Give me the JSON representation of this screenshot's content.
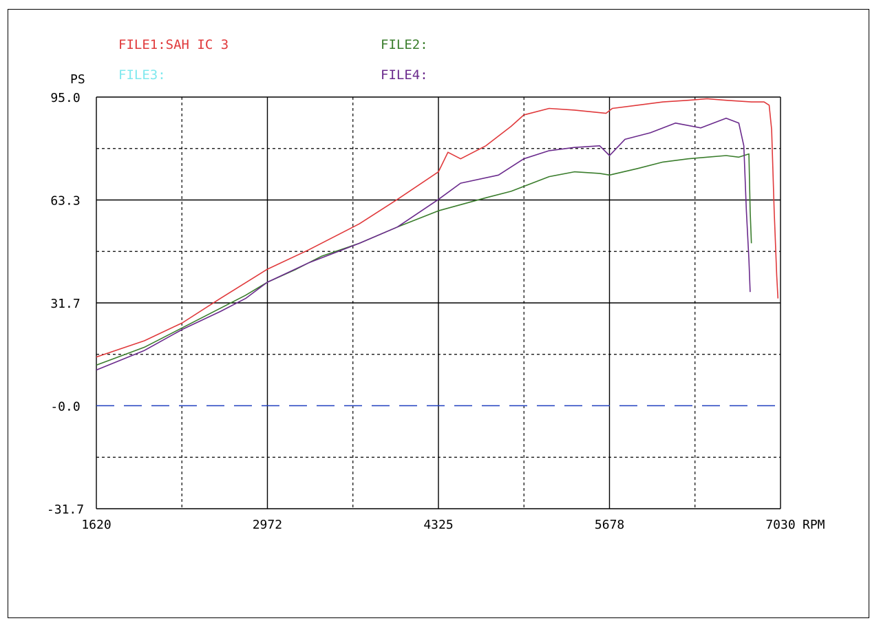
{
  "legend": {
    "file1": {
      "label": "FILE1:SAH IC 3",
      "color": "#e0393b"
    },
    "file2": {
      "label": "FILE2:",
      "color": "#3a7d2c"
    },
    "file3": {
      "label": "FILE3:",
      "color": "#7fe8ee"
    },
    "file4": {
      "label": "FILE4:",
      "color": "#6a2a8c"
    }
  },
  "colors": {
    "grid": "#000000",
    "zero_line": "#1f3fbf",
    "background": "#ffffff"
  },
  "chart_data": {
    "type": "line",
    "ylabel": "PS",
    "xlabel": "RPM",
    "xlim": [
      1620,
      7030
    ],
    "ylim": [
      -31.7,
      95.0
    ],
    "x_ticks": [
      "1620",
      "2972",
      "4325",
      "5678",
      "7030"
    ],
    "y_ticks": [
      "95.0",
      "63.3",
      "31.7",
      "-0.0",
      "-31.7"
    ],
    "grid": true,
    "zero_line": {
      "y": 0,
      "style": "dashed",
      "color": "#1f3fbf"
    },
    "series": [
      {
        "name": "FILE1:SAH IC 3",
        "color": "#e0393b",
        "points": [
          [
            1620,
            15.0
          ],
          [
            2000,
            20.0
          ],
          [
            2300,
            25.5
          ],
          [
            2600,
            33.0
          ],
          [
            2972,
            42.0
          ],
          [
            3300,
            48.0
          ],
          [
            3700,
            56.0
          ],
          [
            4000,
            63.5
          ],
          [
            4325,
            72.0
          ],
          [
            4400,
            78.0
          ],
          [
            4500,
            76.0
          ],
          [
            4700,
            80.0
          ],
          [
            4900,
            86.0
          ],
          [
            5000,
            89.5
          ],
          [
            5200,
            91.5
          ],
          [
            5400,
            91.0
          ],
          [
            5650,
            90.0
          ],
          [
            5700,
            91.5
          ],
          [
            5900,
            92.5
          ],
          [
            6100,
            93.5
          ],
          [
            6300,
            94.0
          ],
          [
            6450,
            94.5
          ],
          [
            6600,
            94.0
          ],
          [
            6800,
            93.5
          ],
          [
            6900,
            93.5
          ],
          [
            6940,
            92.5
          ],
          [
            6960,
            85.0
          ],
          [
            6980,
            60.0
          ],
          [
            7000,
            40.0
          ],
          [
            7010,
            33.0
          ]
        ]
      },
      {
        "name": "FILE2:",
        "color": "#3a7d2c",
        "points": [
          [
            1620,
            12.5
          ],
          [
            2000,
            18.0
          ],
          [
            2400,
            26.0
          ],
          [
            2600,
            30.0
          ],
          [
            2800,
            34.0
          ],
          [
            2972,
            38.0
          ],
          [
            3200,
            42.0
          ],
          [
            3400,
            46.0
          ],
          [
            3700,
            50.0
          ],
          [
            4000,
            55.0
          ],
          [
            4325,
            60.0
          ],
          [
            4700,
            64.0
          ],
          [
            4900,
            66.0
          ],
          [
            5200,
            70.5
          ],
          [
            5400,
            72.0
          ],
          [
            5600,
            71.5
          ],
          [
            5678,
            71.0
          ],
          [
            5900,
            73.0
          ],
          [
            6100,
            75.0
          ],
          [
            6300,
            76.0
          ],
          [
            6450,
            76.5
          ],
          [
            6600,
            77.0
          ],
          [
            6700,
            76.5
          ],
          [
            6780,
            77.5
          ],
          [
            6790,
            60.0
          ],
          [
            6800,
            50.0
          ]
        ]
      },
      {
        "name": "FILE4:",
        "color": "#6a2a8c",
        "points": [
          [
            1620,
            11.0
          ],
          [
            2000,
            17.0
          ],
          [
            2300,
            23.5
          ],
          [
            2600,
            29.0
          ],
          [
            2800,
            33.0
          ],
          [
            2972,
            38.0
          ],
          [
            3300,
            44.0
          ],
          [
            3700,
            50.0
          ],
          [
            4000,
            55.0
          ],
          [
            4325,
            63.5
          ],
          [
            4500,
            68.5
          ],
          [
            4800,
            71.0
          ],
          [
            5000,
            76.0
          ],
          [
            5200,
            78.5
          ],
          [
            5400,
            79.5
          ],
          [
            5600,
            80.0
          ],
          [
            5678,
            77.0
          ],
          [
            5800,
            82.0
          ],
          [
            6000,
            84.0
          ],
          [
            6200,
            87.0
          ],
          [
            6400,
            85.5
          ],
          [
            6600,
            88.5
          ],
          [
            6700,
            87.0
          ],
          [
            6740,
            80.0
          ],
          [
            6760,
            60.0
          ],
          [
            6780,
            45.0
          ],
          [
            6790,
            35.0
          ]
        ]
      }
    ]
  }
}
